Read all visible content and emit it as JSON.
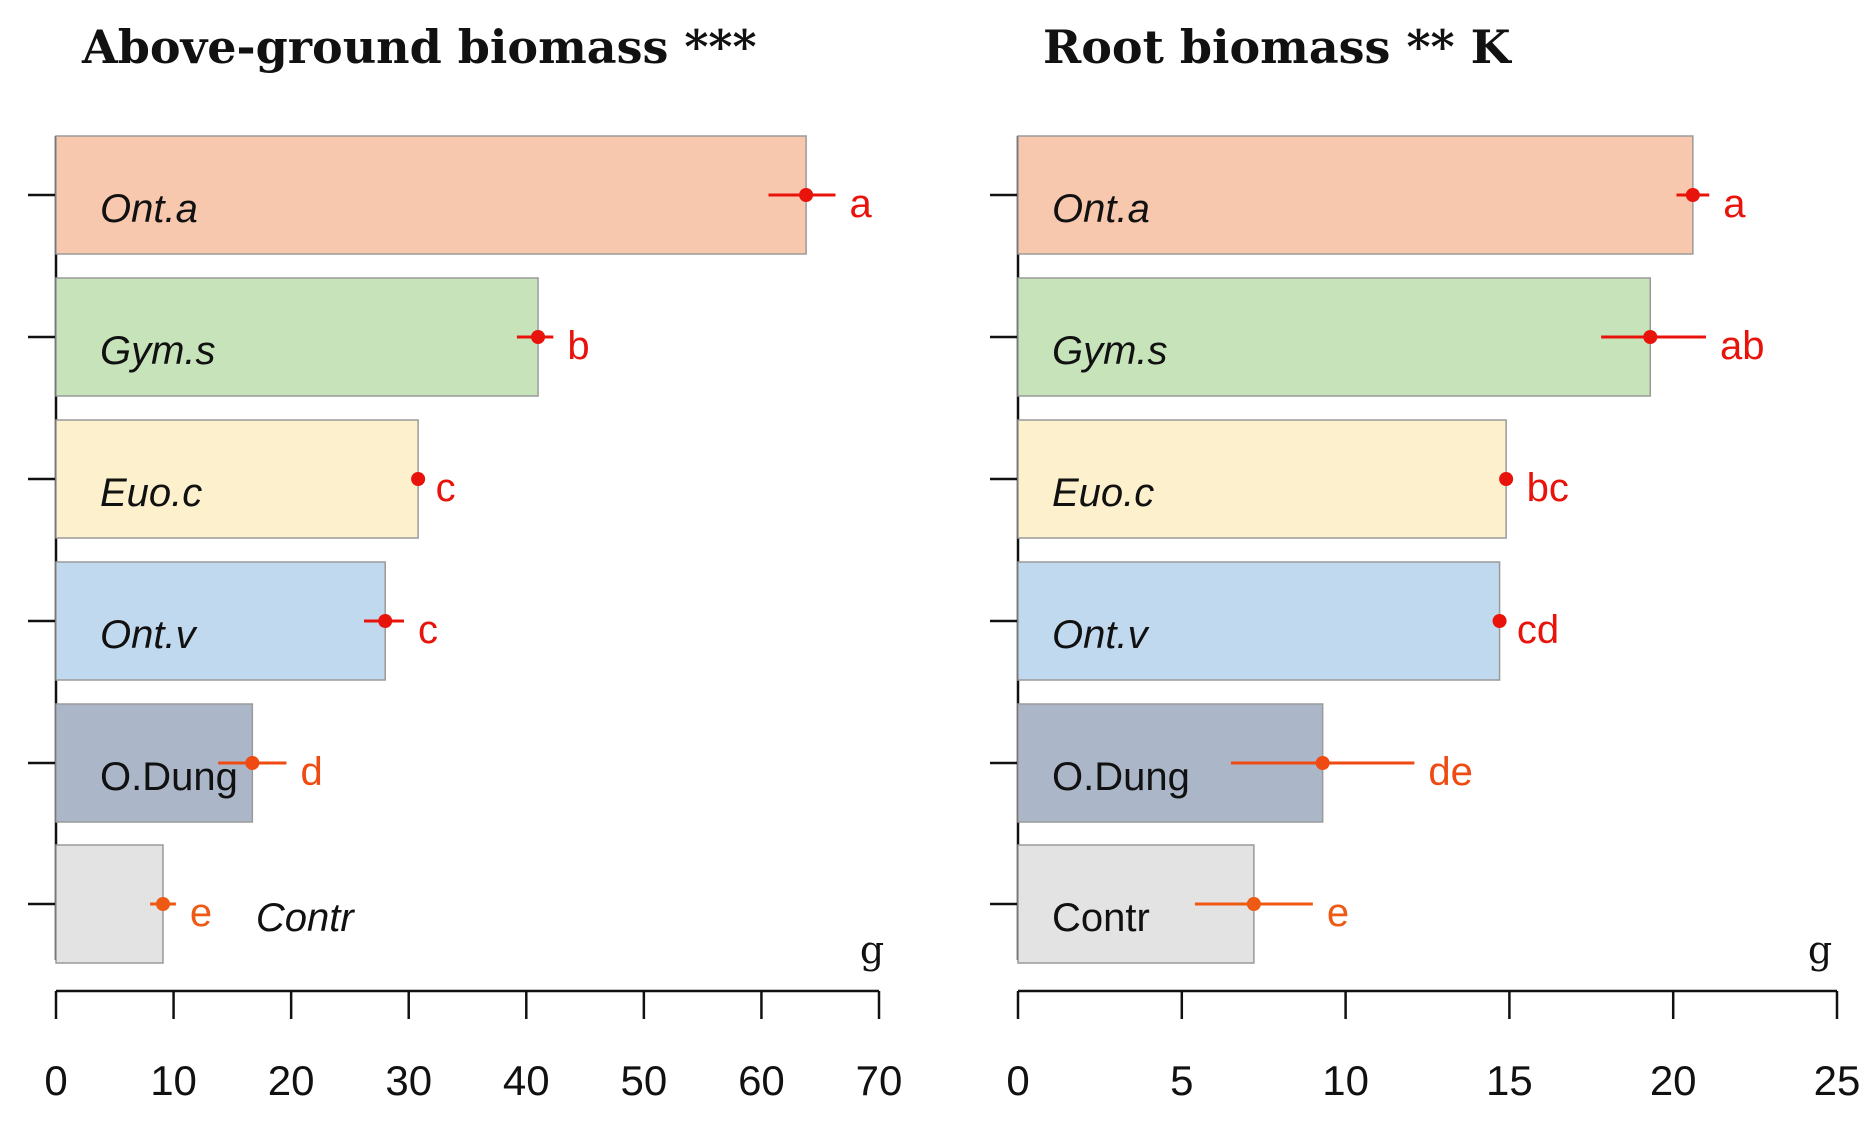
{
  "chart_data": [
    {
      "type": "bar",
      "orientation": "horizontal",
      "title": "Above-ground biomass ***",
      "unit": "g",
      "xlim": [
        0,
        70
      ],
      "xticks": [
        0,
        10,
        20,
        30,
        40,
        50,
        60,
        70
      ],
      "bars": [
        {
          "label": "Ont.a",
          "italic": true,
          "value": 63.8,
          "err_lo": 60.6,
          "err_hi": 66.3,
          "sig": "a",
          "color": "#f8c8ae",
          "marker": "#e8130b"
        },
        {
          "label": "Gym.s",
          "italic": true,
          "value": 41.0,
          "err_lo": 39.2,
          "err_hi": 42.3,
          "sig": "b",
          "color": "#c6e3ba",
          "marker": "#e8130b"
        },
        {
          "label": "Euo.c",
          "italic": true,
          "value": 30.8,
          "err_lo": 30.5,
          "err_hi": 31.1,
          "sig": "c",
          "color": "#fdf1cd",
          "marker": "#e8130b"
        },
        {
          "label": "Ont.v",
          "italic": true,
          "value": 28.0,
          "err_lo": 26.2,
          "err_hi": 29.6,
          "sig": "c",
          "color": "#c0d9ef",
          "marker": "#e8130b"
        },
        {
          "label": "O.Dung",
          "italic": false,
          "value": 16.7,
          "err_lo": 13.8,
          "err_hi": 19.6,
          "sig": "d",
          "color": "#abb7c8",
          "marker": "#ee4a12"
        },
        {
          "label": "Contr",
          "italic": true,
          "value": 9.1,
          "err_lo": 8.0,
          "err_hi": 10.2,
          "sig": "e",
          "color": "#e3e3e3",
          "marker": "#ee5a14",
          "label_outside": true
        }
      ]
    },
    {
      "type": "bar",
      "orientation": "horizontal",
      "title": "Root biomass ** K",
      "unit": "g",
      "xlim": [
        0,
        25
      ],
      "xticks": [
        0,
        5,
        10,
        15,
        20,
        25
      ],
      "bars": [
        {
          "label": "Ont.a",
          "italic": true,
          "value": 20.6,
          "err_lo": 20.1,
          "err_hi": 21.1,
          "sig": "a",
          "color": "#f8c8ae",
          "marker": "#e8130b"
        },
        {
          "label": "Gym.s",
          "italic": true,
          "value": 19.3,
          "err_lo": 17.8,
          "err_hi": 21.0,
          "sig": "ab",
          "color": "#c6e3ba",
          "marker": "#e8130b"
        },
        {
          "label": "Euo.c",
          "italic": true,
          "value": 14.9,
          "err_lo": 14.8,
          "err_hi": 15.1,
          "sig": "bc",
          "color": "#fdf1cd",
          "marker": "#e8130b"
        },
        {
          "label": "Ont.v",
          "italic": true,
          "value": 14.7,
          "err_lo": 14.6,
          "err_hi": 14.8,
          "sig": "cd",
          "color": "#c0d9ef",
          "marker": "#e8130b"
        },
        {
          "label": "O.Dung",
          "italic": false,
          "value": 9.3,
          "err_lo": 6.5,
          "err_hi": 12.1,
          "sig": "de",
          "color": "#abb7c8",
          "marker": "#ee4a12"
        },
        {
          "label": "Contr",
          "italic": false,
          "value": 7.2,
          "err_lo": 5.4,
          "err_hi": 9.0,
          "sig": "e",
          "color": "#e3e3e3",
          "marker": "#ee5a14"
        }
      ]
    }
  ]
}
